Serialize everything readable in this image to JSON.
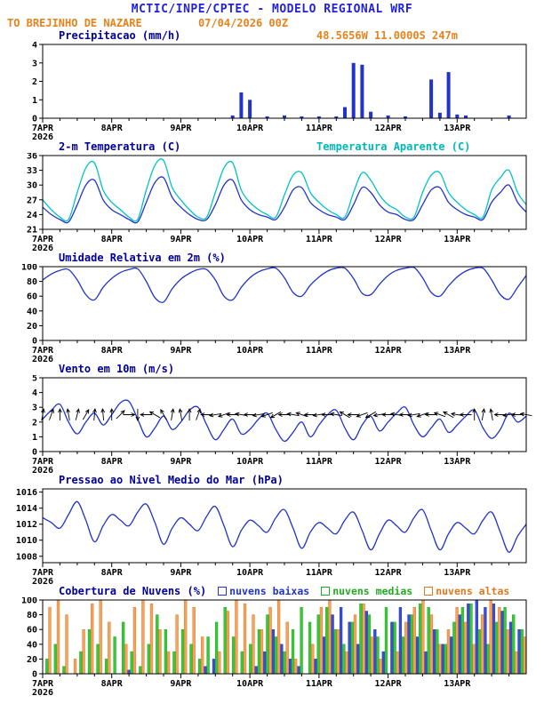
{
  "header": {
    "line1": "MCTIC/INPE/CPTEC - MODELO REGIONAL WRF",
    "station": "TO BREJINHO DE NAZARE",
    "run": "07/04/2026 00Z",
    "coords": "48.5656W 11.0000S 247m"
  },
  "colors": {
    "header_blue": "#2222dd",
    "accent_orange": "#e8821c",
    "title_navy": "#000099",
    "line_blue": "#2233cc",
    "line_cyan": "#00c3c3",
    "cloud_green": "#22bb22",
    "cloud_orange": "#e07820"
  },
  "x_axis": {
    "tick_labels": [
      "7APR",
      "8APR",
      "9APR",
      "10APR",
      "11APR",
      "12APR",
      "13APR"
    ],
    "year": "2026",
    "hours_total": 168,
    "step_hours": 3
  },
  "chart_data": [
    {
      "id": "precip",
      "type": "bar",
      "title": "Precipitacao (mm/h)",
      "color": "#2233cc",
      "ylim": [
        0,
        4
      ],
      "yticks": [
        0,
        1,
        2,
        3,
        4
      ],
      "values": [
        0,
        0,
        0,
        0,
        0,
        0,
        0,
        0,
        0,
        0,
        0,
        0,
        0,
        0,
        0,
        0,
        0,
        0,
        0,
        0,
        0,
        0,
        0.15,
        1.4,
        1.0,
        0,
        0.1,
        0,
        0.15,
        0,
        0.1,
        0,
        0.1,
        0,
        0.1,
        0.6,
        3.0,
        2.9,
        0.35,
        0,
        0.15,
        0,
        0.1,
        0,
        0,
        2.1,
        0.3,
        2.5,
        0.2,
        0.15,
        0,
        0,
        0,
        0,
        0.15,
        0,
        0
      ]
    },
    {
      "id": "temp",
      "type": "line",
      "title": "2-m Temperatura (C)",
      "ylim": [
        21,
        36
      ],
      "yticks": [
        21,
        24,
        27,
        30,
        33,
        36
      ],
      "series": [
        {
          "name": "2-m Temperatura (C)",
          "color": "#2233cc",
          "values": [
            25.5,
            24,
            23,
            22.5,
            26,
            30,
            31,
            27,
            25,
            24,
            23,
            22.5,
            26.5,
            30.5,
            31.5,
            27.5,
            25.5,
            24,
            23,
            23,
            26,
            30,
            31,
            27,
            25,
            24,
            23.5,
            23,
            25.5,
            29,
            29.5,
            26.5,
            25,
            24,
            23.5,
            23,
            26,
            29.5,
            28.5,
            26,
            24.5,
            24,
            23,
            23,
            26,
            29,
            29.5,
            26.5,
            25,
            24,
            23.5,
            23,
            26.5,
            28.5,
            30,
            26.5,
            24.5
          ]
        },
        {
          "name": "Temperatura Aparente (C)",
          "color": "#00c3c3",
          "values": [
            27,
            25,
            23.5,
            23,
            28.5,
            33.5,
            34.5,
            29,
            26.5,
            25,
            23.5,
            23,
            29,
            34,
            35,
            29.5,
            27,
            25,
            23.5,
            23.5,
            28.5,
            33.5,
            34.5,
            29,
            26.5,
            25,
            24,
            23.5,
            28,
            32,
            32.5,
            28.5,
            26.5,
            25,
            24,
            23.5,
            28.5,
            32.5,
            31,
            28,
            26,
            25,
            23.5,
            23.5,
            28.5,
            32,
            32.5,
            28.5,
            26.5,
            25,
            24,
            23.5,
            29,
            31.5,
            33,
            28.5,
            26
          ]
        }
      ]
    },
    {
      "id": "rh",
      "type": "line",
      "title": "Umidade Relativa em 2m (%)",
      "ylim": [
        0,
        100
      ],
      "yticks": [
        0,
        20,
        40,
        60,
        80,
        100
      ],
      "series": [
        {
          "name": "Umidade Relativa em 2m (%)",
          "color": "#2233cc",
          "values": [
            82,
            90,
            95,
            96,
            82,
            62,
            55,
            72,
            84,
            92,
            96,
            97,
            80,
            58,
            52,
            70,
            83,
            91,
            96,
            96,
            82,
            60,
            55,
            72,
            85,
            93,
            97,
            98,
            85,
            65,
            60,
            75,
            86,
            94,
            98,
            98,
            84,
            64,
            62,
            76,
            88,
            95,
            98,
            99,
            85,
            65,
            60,
            74,
            86,
            94,
            98,
            98,
            82,
            62,
            56,
            72,
            88
          ]
        }
      ]
    },
    {
      "id": "wind",
      "type": "wind",
      "title": "Vento em 10m (m/s)",
      "ylim": [
        0,
        5
      ],
      "yticks": [
        0,
        1,
        2,
        3,
        4,
        5
      ],
      "arrow_y": 2.5,
      "directions": [
        10,
        20,
        0,
        350,
        15,
        30,
        5,
        355,
        0,
        45,
        90,
        180,
        270,
        300,
        330,
        10,
        350,
        0,
        20,
        270,
        260,
        250,
        270,
        280,
        270,
        260,
        250,
        240,
        270,
        280,
        290,
        270,
        260,
        270,
        280,
        300,
        270,
        250,
        240,
        260,
        270,
        280,
        270,
        260,
        250,
        270,
        290,
        300,
        280,
        270,
        0,
        10,
        350,
        270,
        260,
        270,
        280
      ],
      "series": [
        {
          "name": "Vento em 10m (m/s)",
          "color": "#2233cc",
          "values": [
            2.2,
            2.8,
            3.2,
            2.0,
            1.2,
            2.0,
            2.6,
            1.8,
            2.5,
            3.3,
            3.4,
            2.2,
            1.0,
            1.6,
            2.4,
            1.5,
            2.0,
            2.8,
            3.0,
            1.8,
            0.8,
            1.5,
            2.2,
            1.2,
            1.5,
            2.2,
            2.6,
            1.5,
            0.7,
            1.3,
            2.0,
            1.0,
            1.8,
            2.5,
            2.8,
            1.6,
            0.8,
            1.8,
            2.4,
            1.4,
            2.0,
            2.6,
            3.0,
            1.8,
            1.0,
            1.6,
            2.2,
            1.3,
            1.8,
            2.4,
            2.8,
            1.6,
            0.9,
            1.5,
            2.6,
            2.0,
            2.4
          ]
        }
      ]
    },
    {
      "id": "pres",
      "type": "line",
      "title": "Pressao ao Nivel Medio do Mar (hPa)",
      "ylim": [
        1007.2,
        1016.4
      ],
      "yticks": [
        1008,
        1010,
        1012,
        1014,
        1016
      ],
      "series": [
        {
          "name": "Pressao ao Nivel Medio do Mar (hPa)",
          "color": "#2233cc",
          "values": [
            1012.8,
            1012.2,
            1011.5,
            1013.2,
            1014.8,
            1012.5,
            1009.8,
            1011.8,
            1013.2,
            1012.5,
            1011.8,
            1013.5,
            1014.5,
            1012.2,
            1009.5,
            1011.5,
            1012.8,
            1012.0,
            1011.2,
            1013.0,
            1014.2,
            1011.8,
            1009.2,
            1011.2,
            1012.5,
            1011.8,
            1011.0,
            1012.8,
            1013.8,
            1011.5,
            1009.0,
            1011.0,
            1012.2,
            1011.5,
            1010.8,
            1012.5,
            1013.5,
            1011.2,
            1008.8,
            1010.8,
            1012.5,
            1011.8,
            1011.0,
            1012.8,
            1013.8,
            1011.2,
            1008.8,
            1010.8,
            1012.2,
            1011.5,
            1010.8,
            1012.5,
            1013.5,
            1011.0,
            1008.5,
            1010.5,
            1012.0
          ]
        }
      ]
    },
    {
      "id": "clouds",
      "type": "groupbar",
      "title": "Cobertura de Nuvens (%)",
      "ylim": [
        0,
        100
      ],
      "yticks": [
        0,
        20,
        40,
        60,
        80,
        100
      ],
      "series": [
        {
          "name": "nuvens baixas",
          "color": "#2233cc",
          "fill": "#3a4fd0",
          "values": [
            0,
            0,
            0,
            0,
            0,
            0,
            0,
            0,
            0,
            0,
            5,
            0,
            0,
            0,
            0,
            0,
            0,
            0,
            0,
            10,
            20,
            0,
            0,
            0,
            0,
            10,
            30,
            60,
            40,
            20,
            10,
            0,
            20,
            50,
            80,
            90,
            70,
            40,
            85,
            60,
            30,
            70,
            90,
            80,
            50,
            30,
            60,
            40,
            50,
            80,
            95,
            100,
            90,
            95,
            85,
            70,
            60
          ]
        },
        {
          "name": "nuvens medias",
          "color": "#22aa22",
          "fill": "#37c837",
          "values": [
            20,
            40,
            10,
            0,
            30,
            60,
            40,
            20,
            50,
            70,
            30,
            10,
            40,
            80,
            60,
            30,
            60,
            40,
            20,
            50,
            70,
            90,
            50,
            30,
            40,
            60,
            80,
            50,
            30,
            60,
            90,
            70,
            80,
            90,
            60,
            40,
            70,
            95,
            80,
            50,
            90,
            70,
            50,
            80,
            95,
            90,
            60,
            40,
            70,
            90,
            95,
            60,
            40,
            70,
            90,
            80,
            60
          ]
        },
        {
          "name": "nuvens altas",
          "color": "#e07820",
          "fill": "#f2a45e",
          "values": [
            90,
            100,
            80,
            20,
            60,
            95,
            100,
            70,
            0,
            40,
            90,
            100,
            95,
            60,
            30,
            80,
            100,
            90,
            50,
            0,
            30,
            85,
            100,
            95,
            80,
            60,
            90,
            100,
            70,
            20,
            0,
            40,
            90,
            100,
            60,
            30,
            80,
            95,
            50,
            20,
            0,
            30,
            70,
            90,
            100,
            80,
            40,
            60,
            90,
            70,
            40,
            80,
            100,
            90,
            60,
            30,
            50
          ]
        }
      ]
    }
  ]
}
